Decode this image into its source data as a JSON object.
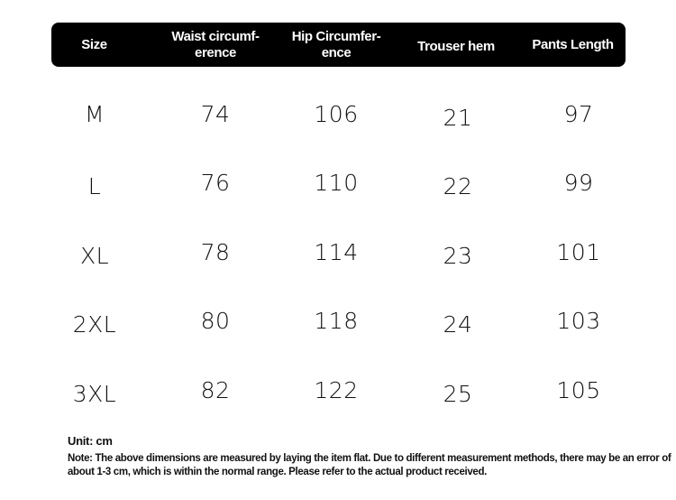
{
  "table": {
    "headers": [
      "Size",
      "Waist circumf-\nerence",
      "Hip Circumfer-\nence",
      "Trouser hem",
      "Pants Length"
    ],
    "rows": [
      [
        "M",
        "74",
        "106",
        "21",
        "97"
      ],
      [
        "L",
        "76",
        "110",
        "22",
        "99"
      ],
      [
        "XL",
        "78",
        "114",
        "23",
        "101"
      ],
      [
        "2XL",
        "80",
        "118",
        "24",
        "103"
      ],
      [
        "3XL",
        "82",
        "122",
        "25",
        "105"
      ]
    ]
  },
  "unit": "Unit: cm",
  "note": "Note: The above dimensions are measured by laying the item flat. Due to different measurement methods, there may be an error of about 1-3 cm, which is within the normal range. Please refer to the actual product received.",
  "colors": {
    "header_bg": "#000000",
    "header_text": "#ffffff",
    "text": "#111111"
  }
}
